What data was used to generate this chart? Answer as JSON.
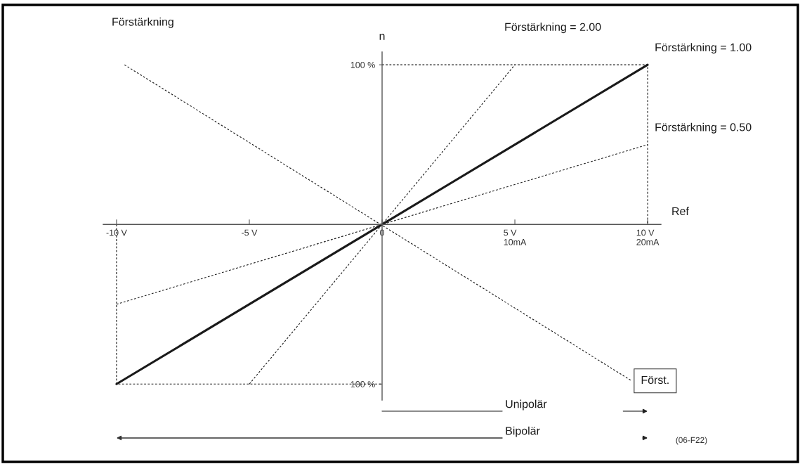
{
  "chart_data": {
    "type": "line",
    "title": "Förstärkning",
    "xlabel": "Ref",
    "ylabel": "n",
    "xlim": [
      -10.5,
      10.5
    ],
    "ylim": [
      -110,
      108
    ],
    "xticks": [
      {
        "value": -10,
        "label": "-10 V"
      },
      {
        "value": -5,
        "label": "-5 V"
      },
      0,
      {
        "value": 5,
        "label": "5 V\n10mA"
      },
      {
        "value": 10,
        "label": "10 V\n20mA"
      }
    ],
    "yticks": [
      {
        "value": -100,
        "label": "100 %"
      },
      {
        "value": 100,
        "label": "100 %"
      }
    ],
    "series": [
      {
        "name": "Förstärkning = 2.00",
        "color": "#1a1a1a",
        "line_style": "dashed",
        "x": [
          -5,
          5
        ],
        "values": [
          -100,
          100
        ]
      },
      {
        "name": "Förstärkning = 1.00",
        "color": "#1a1a1a",
        "line_style": "solid",
        "x": [
          -10,
          10
        ],
        "values": [
          -100,
          100
        ]
      },
      {
        "name": "Förstärkning = 0.50",
        "color": "#1a1a1a",
        "line_style": "dashed",
        "x": [
          -10,
          10
        ],
        "values": [
          -50,
          50
        ]
      },
      {
        "name": "Först.",
        "color": "#1a1a1a",
        "line_style": "dashed",
        "x": [
          -9.7,
          9.4
        ],
        "values": [
          100,
          -98
        ]
      },
      {
        "color": "#1a1a1a",
        "line_style": "dashed",
        "x": [
          0,
          10,
          10
        ],
        "values": [
          100,
          100,
          0
        ]
      },
      {
        "color": "#1a1a1a",
        "line_style": "dashed",
        "x": [
          -10,
          -10,
          0
        ],
        "values": [
          0,
          -100,
          -100
        ]
      }
    ],
    "annotations": [
      "Unipolär",
      "Bipolär",
      "(06-F22)"
    ]
  }
}
